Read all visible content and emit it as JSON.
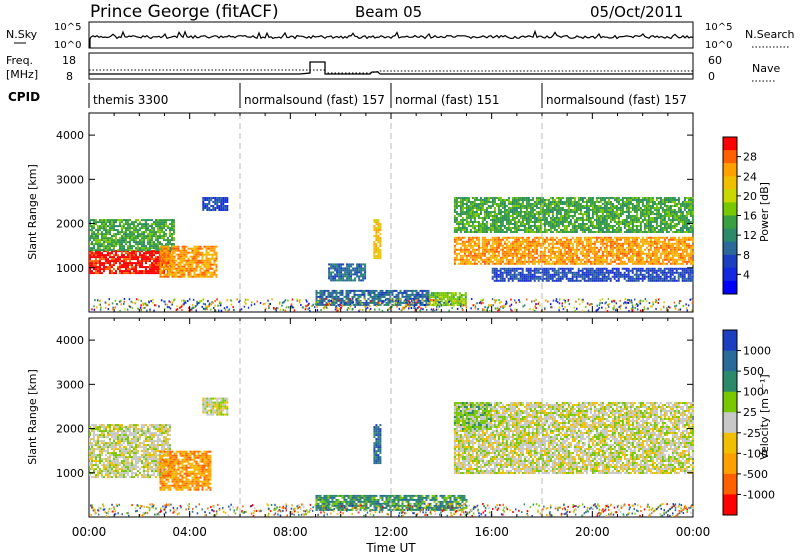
{
  "header": {
    "station": "Prince George (fitACF)",
    "beam": "Beam 05",
    "date": "05/Oct/2011"
  },
  "status_panels": {
    "nsky_label": "N.Sky",
    "nsearch_label": "N.Search",
    "noise_ticks": [
      "10^5",
      "10^0"
    ],
    "freq_label_line1": "Freq.",
    "freq_label_line2": "[MHz]",
    "freq_ticks": [
      "18",
      "8"
    ],
    "nave_label": "Nave",
    "nave_ticks": [
      "60",
      "0"
    ],
    "cpid_label": "CPID",
    "cpid_segments": [
      {
        "name": "themis 3300",
        "start_hour": 0,
        "end_hour": 6
      },
      {
        "name": "normalsound (fast) 157",
        "start_hour": 6,
        "end_hour": 12
      },
      {
        "name": "normal (fast) 151",
        "start_hour": 12,
        "end_hour": 18
      },
      {
        "name": "normalsound (fast) 157",
        "start_hour": 18,
        "end_hour": 24
      }
    ]
  },
  "chart_data": [
    {
      "type": "heatmap",
      "name": "power",
      "ylabel": "Slant Range [km]",
      "ylim": [
        0,
        4500
      ],
      "yticks": [
        "4000",
        "3000",
        "2000",
        "1000"
      ],
      "xlim_hours": [
        0,
        24
      ],
      "colorbar_label": "Power [dB]",
      "colorbar_ticks": [
        "28",
        "24",
        "20",
        "16",
        "12",
        "8",
        "4"
      ],
      "colorbar_colors": [
        "#ff0000",
        "#ff6000",
        "#ffa000",
        "#f0c000",
        "#c8d800",
        "#78c800",
        "#38a040",
        "#2a8a6a",
        "#2a6a9a",
        "#1c3fbf",
        "#1428e0",
        "#0000ff"
      ],
      "echo_regions": [
        {
          "start_hour": 0.0,
          "end_hour": 3.2,
          "range_low": 900,
          "range_high": 1400,
          "level": 0
        },
        {
          "start_hour": 0.0,
          "end_hour": 3.4,
          "range_low": 1400,
          "range_high": 2100,
          "level": 6
        },
        {
          "start_hour": 2.8,
          "end_hour": 5.1,
          "range_low": 800,
          "range_high": 1500,
          "level": 2
        },
        {
          "start_hour": 4.5,
          "end_hour": 5.5,
          "range_low": 2300,
          "range_high": 2600,
          "level": 9
        },
        {
          "start_hour": 9.5,
          "end_hour": 11.0,
          "range_low": 700,
          "range_high": 1100,
          "level": 8
        },
        {
          "start_hour": 11.3,
          "end_hour": 11.6,
          "range_low": 1200,
          "range_high": 2100,
          "level": 3
        },
        {
          "start_hour": 9.0,
          "end_hour": 13.5,
          "range_low": 150,
          "range_high": 500,
          "level": 8
        },
        {
          "start_hour": 13.5,
          "end_hour": 15.0,
          "range_low": 150,
          "range_high": 450,
          "level": 5
        },
        {
          "start_hour": 14.5,
          "end_hour": 24.0,
          "range_low": 1100,
          "range_high": 1700,
          "level": 2
        },
        {
          "start_hour": 14.5,
          "end_hour": 24.0,
          "range_low": 1800,
          "range_high": 2600,
          "level": 6
        },
        {
          "start_hour": 16.0,
          "end_hour": 24.0,
          "range_low": 700,
          "range_high": 1000,
          "level": 9
        }
      ]
    },
    {
      "type": "heatmap",
      "name": "velocity",
      "ylabel": "Slant Range [km]",
      "ylim": [
        0,
        4500
      ],
      "yticks": [
        "4000",
        "3000",
        "2000",
        "1000"
      ],
      "xlim_hours": [
        0,
        24
      ],
      "xticks": [
        "00:00",
        "04:00",
        "08:00",
        "12:00",
        "16:00",
        "20:00",
        "00:00"
      ],
      "xlabel": "Time UT",
      "colorbar_label": "Velocity [m s⁻¹]",
      "colorbar_ticks": [
        "1000",
        "500",
        "100",
        "25",
        "-25",
        "-100",
        "-500",
        "-1000"
      ],
      "colorbar_colors": [
        "#1c3fbf",
        "#2a6a9a",
        "#2a8a6a",
        "#78c800",
        "#c8c8c8",
        "#f0c000",
        "#ffa000",
        "#ff6000",
        "#ff0000"
      ],
      "echo_regions": [
        {
          "start_hour": 0.0,
          "end_hour": 3.2,
          "range_low": 900,
          "range_high": 2100,
          "level": 4
        },
        {
          "start_hour": 2.8,
          "end_hour": 4.8,
          "range_low": 600,
          "range_high": 1500,
          "level": 6
        },
        {
          "start_hour": 4.5,
          "end_hour": 5.5,
          "range_low": 2300,
          "range_high": 2700,
          "level": 4
        },
        {
          "start_hour": 11.3,
          "end_hour": 11.6,
          "range_low": 1200,
          "range_high": 2100,
          "level": 1
        },
        {
          "start_hour": 9.0,
          "end_hour": 15.0,
          "range_low": 150,
          "range_high": 500,
          "level": 2
        },
        {
          "start_hour": 14.5,
          "end_hour": 24.0,
          "range_low": 1000,
          "range_high": 2600,
          "level": 4
        },
        {
          "start_hour": 14.5,
          "end_hour": 16.0,
          "range_low": 2000,
          "range_high": 2600,
          "level": 3
        }
      ]
    }
  ]
}
